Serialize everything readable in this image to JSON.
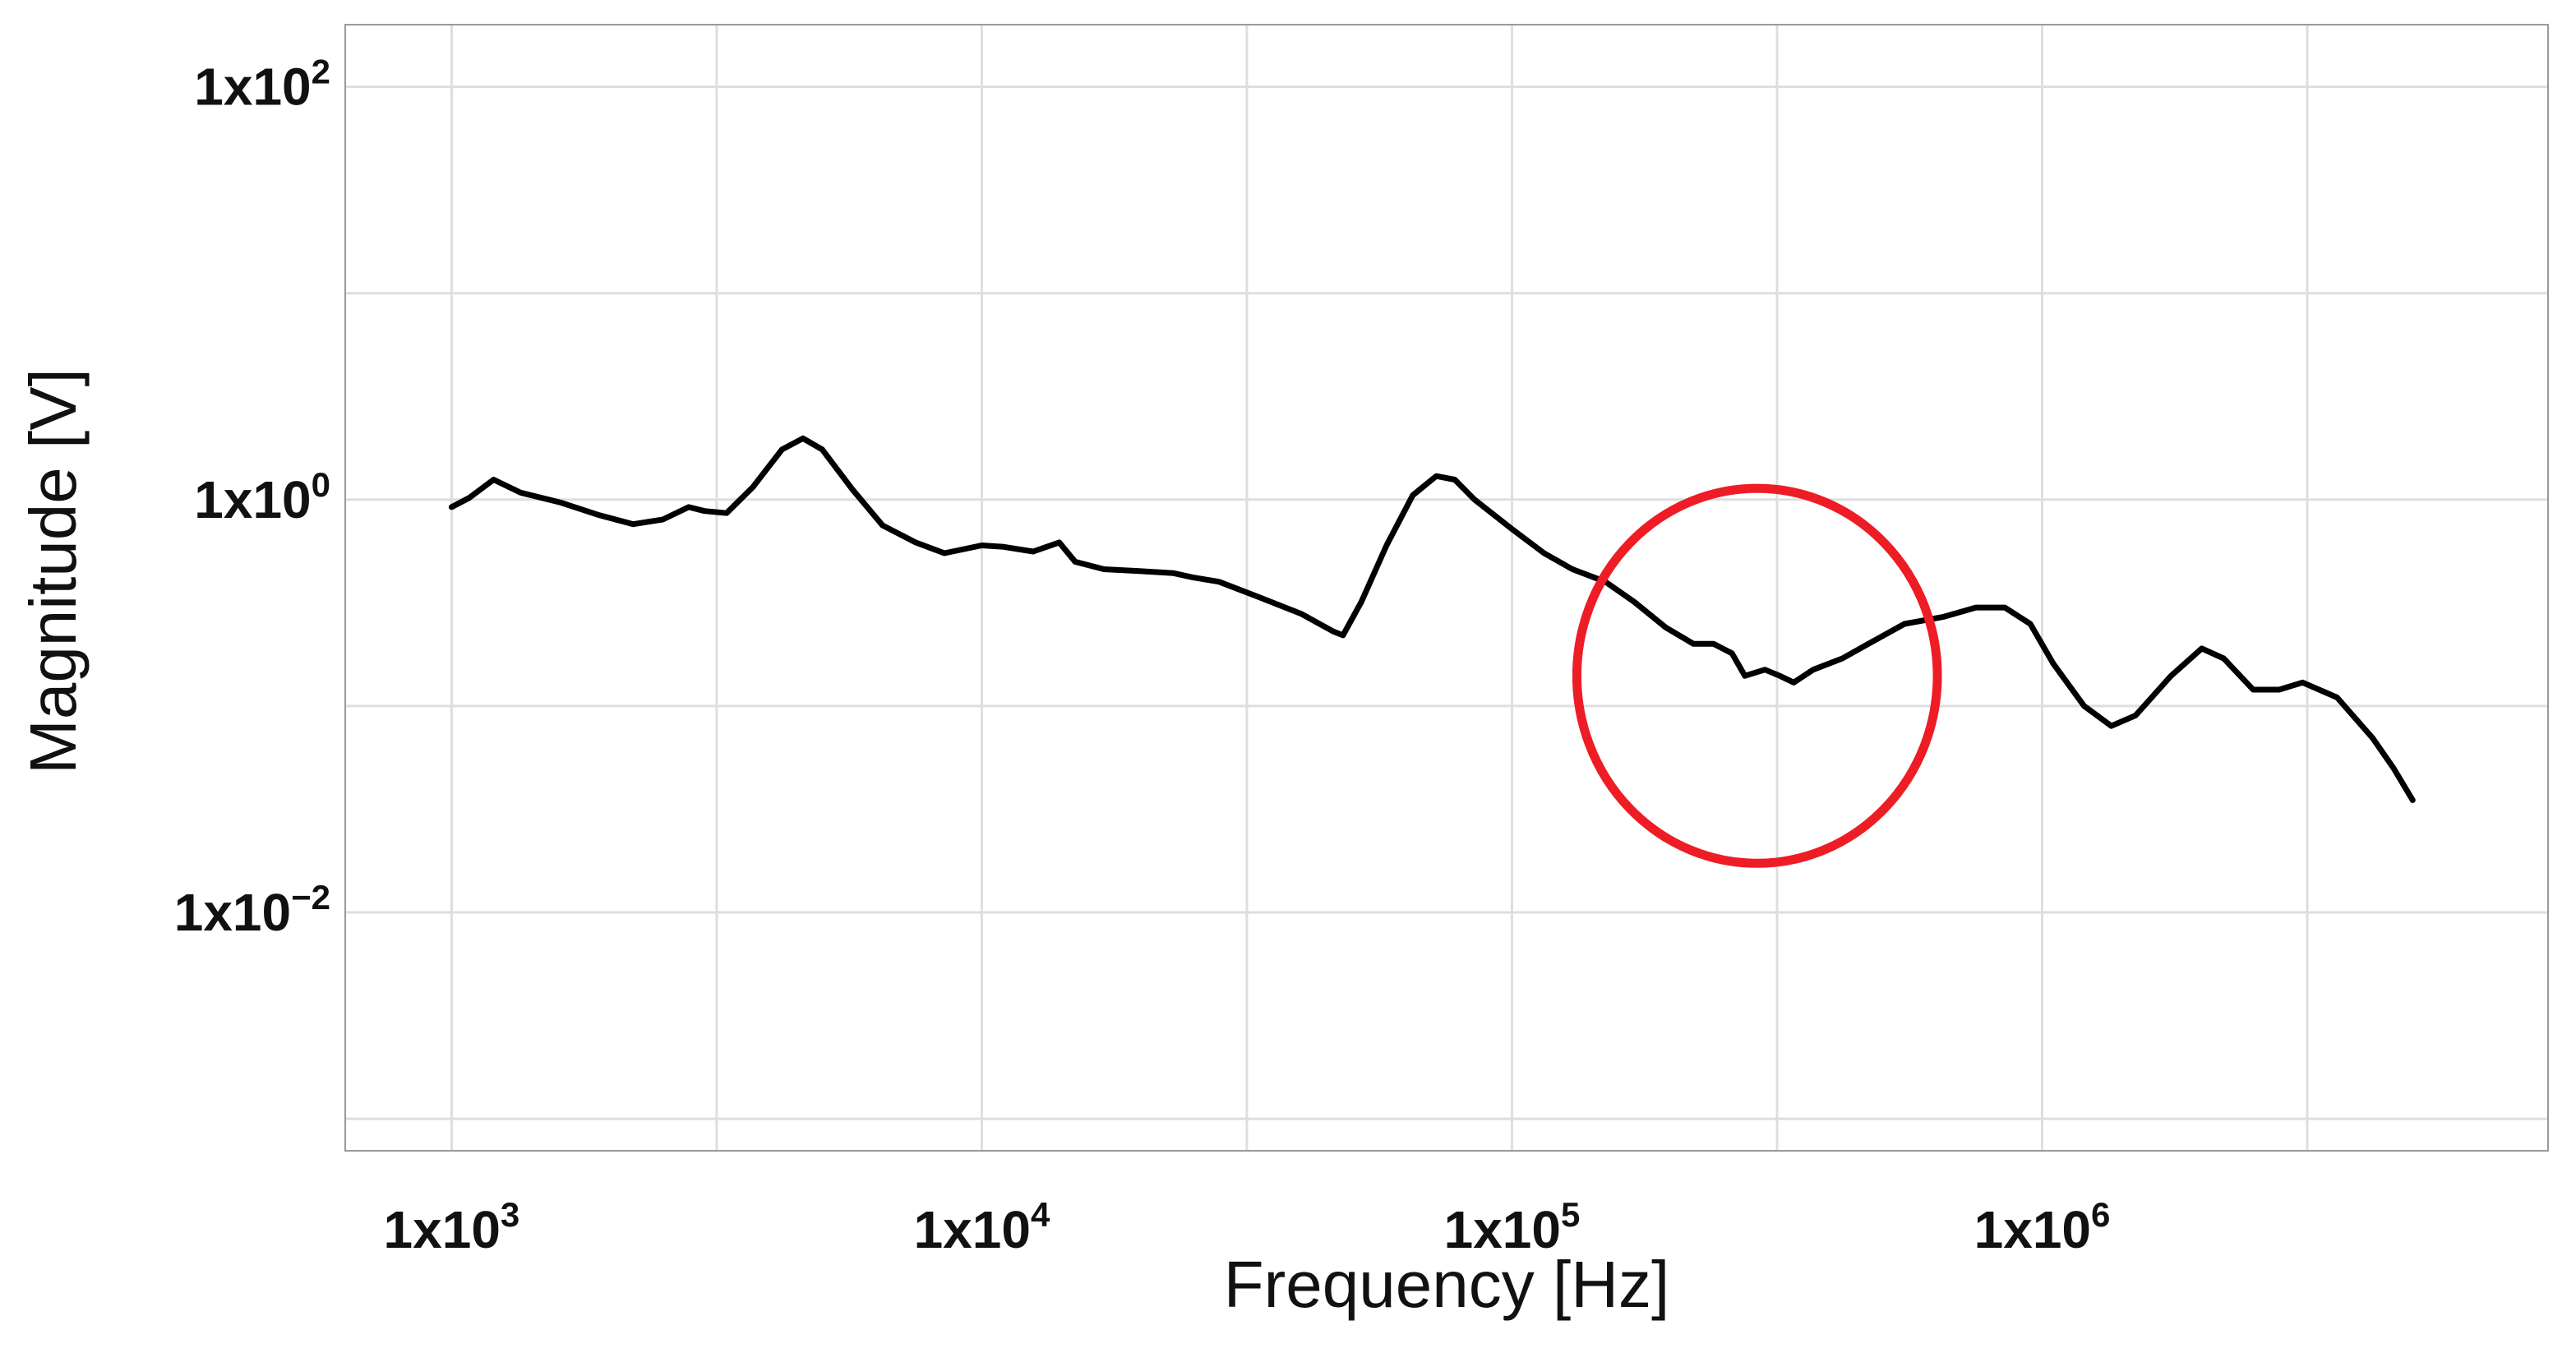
{
  "chart_data": {
    "type": "line",
    "title": "",
    "xlabel": "Frequency [Hz]",
    "ylabel": "Magnitude [V]",
    "xscale": "log",
    "yscale": "log",
    "xlim": [
      630,
      9000000
    ],
    "ylim": [
      0.0007,
      200
    ],
    "grid": true,
    "x_major_ticks": [
      {
        "value": 1000,
        "base": "1x10",
        "exp": "3"
      },
      {
        "value": 10000,
        "base": "1x10",
        "exp": "4"
      },
      {
        "value": 100000,
        "base": "1x10",
        "exp": "5"
      },
      {
        "value": 1000000,
        "base": "1x10",
        "exp": "6"
      }
    ],
    "y_major_ticks": [
      {
        "value": 100,
        "base": "1x10",
        "exp": "2"
      },
      {
        "value": 1,
        "base": "1x10",
        "exp": "0"
      },
      {
        "value": 0.01,
        "base": "1x10",
        "exp": "−2"
      }
    ],
    "x_minor_grid": [
      3162,
      31623,
      316228,
      3162278
    ],
    "y_minor_grid": [
      10,
      0.1,
      0.001
    ],
    "series": [
      {
        "color": "#000000",
        "points": [
          [
            1000,
            0.92
          ],
          [
            1080,
            1.02
          ],
          [
            1200,
            1.25
          ],
          [
            1350,
            1.08
          ],
          [
            1600,
            0.97
          ],
          [
            1900,
            0.84
          ],
          [
            2200,
            0.76
          ],
          [
            2500,
            0.8
          ],
          [
            2800,
            0.92
          ],
          [
            3000,
            0.88
          ],
          [
            3300,
            0.86
          ],
          [
            3700,
            1.15
          ],
          [
            4200,
            1.75
          ],
          [
            4600,
            1.98
          ],
          [
            5000,
            1.75
          ],
          [
            5700,
            1.12
          ],
          [
            6500,
            0.75
          ],
          [
            7500,
            0.62
          ],
          [
            8500,
            0.55
          ],
          [
            10000,
            0.6
          ],
          [
            11000,
            0.59
          ],
          [
            12500,
            0.56
          ],
          [
            14000,
            0.62
          ],
          [
            15000,
            0.5
          ],
          [
            17000,
            0.46
          ],
          [
            20000,
            0.45
          ],
          [
            23000,
            0.44
          ],
          [
            25000,
            0.42
          ],
          [
            28000,
            0.4
          ],
          [
            33000,
            0.34
          ],
          [
            40000,
            0.28
          ],
          [
            46000,
            0.23
          ],
          [
            48000,
            0.22
          ],
          [
            52000,
            0.32
          ],
          [
            58000,
            0.6
          ],
          [
            65000,
            1.05
          ],
          [
            72000,
            1.3
          ],
          [
            78000,
            1.25
          ],
          [
            85000,
            1.0
          ],
          [
            100000,
            0.72
          ],
          [
            115000,
            0.55
          ],
          [
            130000,
            0.46
          ],
          [
            150000,
            0.4
          ],
          [
            170000,
            0.32
          ],
          [
            195000,
            0.24
          ],
          [
            220000,
            0.2
          ],
          [
            240000,
            0.2
          ],
          [
            260000,
            0.18
          ],
          [
            275000,
            0.14
          ],
          [
            300000,
            0.15
          ],
          [
            320000,
            0.14
          ],
          [
            340000,
            0.13
          ],
          [
            370000,
            0.15
          ],
          [
            420000,
            0.17
          ],
          [
            470000,
            0.2
          ],
          [
            550000,
            0.25
          ],
          [
            650000,
            0.27
          ],
          [
            750000,
            0.3
          ],
          [
            850000,
            0.3
          ],
          [
            950000,
            0.25
          ],
          [
            1050000,
            0.16
          ],
          [
            1200000,
            0.1
          ],
          [
            1350000,
            0.08
          ],
          [
            1500000,
            0.09
          ],
          [
            1750000,
            0.14
          ],
          [
            2000000,
            0.19
          ],
          [
            2200000,
            0.17
          ],
          [
            2500000,
            0.12
          ],
          [
            2800000,
            0.12
          ],
          [
            3100000,
            0.13
          ],
          [
            3600000,
            0.11
          ],
          [
            4200000,
            0.07
          ],
          [
            4600000,
            0.05
          ],
          [
            5000000,
            0.035
          ]
        ]
      }
    ],
    "annotation": {
      "shape": "circle",
      "color": "#ee1c25",
      "center": [
        290000,
        0.14
      ],
      "radius_decades": 0.34
    }
  }
}
